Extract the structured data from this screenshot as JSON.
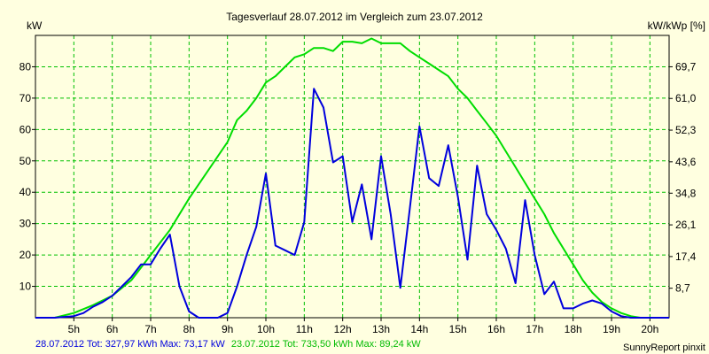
{
  "chart_data": {
    "type": "line",
    "title": "Tagesverlauf 28.07.2012 im Vergleich zum 23.07.2012",
    "ylabel_left": "kW",
    "ylabel_right": "kW/kWp [%]",
    "xlim": [
      4.0,
      20.5
    ],
    "ylim": [
      0,
      90
    ],
    "x_ticks": [
      5,
      6,
      7,
      8,
      9,
      10,
      11,
      12,
      13,
      14,
      15,
      16,
      17,
      18,
      19,
      20
    ],
    "x_tick_labels": [
      "5h",
      "6h",
      "7h",
      "8h",
      "9h",
      "10h",
      "11h",
      "12h",
      "13h",
      "14h",
      "15h",
      "16h",
      "17h",
      "18h",
      "19h",
      "20h"
    ],
    "y_ticks_left": [
      10,
      20,
      30,
      40,
      50,
      60,
      70,
      80
    ],
    "y_ticks_left_labels": [
      "10",
      "20",
      "30",
      "40",
      "50",
      "60",
      "70",
      "80"
    ],
    "y_ticks_right": [
      {
        "y": 9.4,
        "label": "8,7"
      },
      {
        "y": 19.5,
        "label": "17,4"
      },
      {
        "y": 29.6,
        "label": "26,1"
      },
      {
        "y": 39.7,
        "label": "34,8"
      },
      {
        "y": 49.7,
        "label": "43,6"
      },
      {
        "y": 59.8,
        "label": "52,3"
      },
      {
        "y": 69.9,
        "label": "61,0"
      },
      {
        "y": 80.0,
        "label": "69,7"
      }
    ],
    "grid": true,
    "series": [
      {
        "color": "#00dd00",
        "x": [
          4.0,
          4.5,
          5.0,
          5.5,
          6.0,
          6.5,
          7.0,
          7.5,
          8.0,
          8.5,
          9.0,
          9.25,
          9.5,
          9.75,
          10.0,
          10.25,
          10.5,
          10.75,
          11.0,
          11.25,
          11.5,
          11.75,
          12.0,
          12.25,
          12.5,
          12.75,
          13.0,
          13.25,
          13.5,
          13.75,
          14.0,
          14.25,
          14.5,
          14.75,
          15.0,
          15.25,
          15.5,
          15.75,
          16.0,
          16.25,
          16.5,
          16.75,
          17.0,
          17.25,
          17.5,
          17.75,
          18.0,
          18.25,
          18.5,
          18.75,
          19.0,
          19.25,
          19.5,
          19.75,
          20.0,
          20.5
        ],
        "y": [
          0,
          0,
          1.5,
          4,
          7,
          12,
          20,
          28,
          38,
          47,
          56,
          63,
          66,
          70,
          75,
          77,
          80,
          83,
          84,
          86,
          86,
          85,
          88,
          88,
          87.5,
          89,
          87.5,
          87.5,
          87.5,
          85,
          83,
          81,
          79,
          77,
          73,
          70,
          66,
          62,
          58,
          53,
          48,
          43,
          38,
          33,
          27,
          22,
          17,
          12,
          8,
          5,
          3,
          1.5,
          0.5,
          0,
          0,
          0
        ]
      },
      {
        "color": "#0000dd",
        "x": [
          4.0,
          4.5,
          5.0,
          5.25,
          5.5,
          5.75,
          6.0,
          6.25,
          6.5,
          6.75,
          7.0,
          7.25,
          7.5,
          7.75,
          8.0,
          8.25,
          8.5,
          8.75,
          9.0,
          9.25,
          9.5,
          9.75,
          10.0,
          10.25,
          10.5,
          10.75,
          11.0,
          11.25,
          11.5,
          11.75,
          12.0,
          12.25,
          12.5,
          12.75,
          13.0,
          13.25,
          13.5,
          13.75,
          14.0,
          14.25,
          14.5,
          14.75,
          15.0,
          15.25,
          15.5,
          15.75,
          16.0,
          16.25,
          16.5,
          16.75,
          17.0,
          17.25,
          17.5,
          17.75,
          18.0,
          18.25,
          18.5,
          18.75,
          19.0,
          19.25,
          19.5,
          19.75,
          20.0,
          20.5
        ],
        "y": [
          0,
          0,
          0.5,
          1.5,
          3.5,
          5,
          7,
          10,
          13,
          17,
          17,
          22,
          26.5,
          10,
          2,
          0,
          0,
          0,
          1.5,
          10,
          20,
          29,
          46,
          23,
          21.5,
          20,
          30.5,
          73,
          67,
          49.5,
          51.5,
          30.5,
          42.5,
          25,
          51.5,
          33,
          9.5,
          35,
          61,
          44.5,
          42,
          55,
          38.5,
          18.5,
          48.5,
          33,
          28,
          22,
          11,
          37.5,
          20,
          7.5,
          11.5,
          3,
          3,
          4.5,
          5.5,
          4.5,
          2,
          0.5,
          0,
          0,
          0,
          0
        ]
      }
    ],
    "footer_left": [
      {
        "text": "28.07.2012 Tot: 327,97 kWh Max: 73,17 kW",
        "color": "#0000dd"
      },
      {
        "text": "23.07.2012 Tot: 733,50 kWh Max: 89,24 kW",
        "color": "#00bb00"
      }
    ],
    "footer_right": "SunnyReport pinxit",
    "colors": {
      "background": "#ffffe0",
      "grid": "#00c000",
      "axis": "#000000",
      "text": "#000000"
    }
  }
}
